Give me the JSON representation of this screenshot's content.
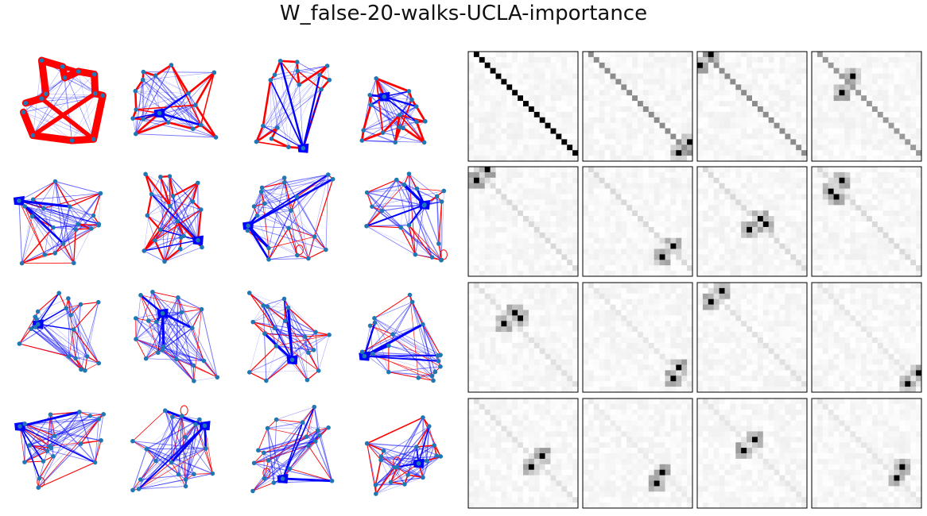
{
  "title": "W_false-20-walks-UCLA-importance",
  "colors": {
    "node": "#1f77b4",
    "positive_edge": "#ff0000",
    "negative_edge": "#0000ff",
    "matrix_border": "#000000"
  },
  "graphs": [
    {
      "seed": 101,
      "nodes": 14,
      "redWidth": 9,
      "blueWidth": 0.6,
      "density": 0.55,
      "cluster": 0,
      "loops": 0
    },
    {
      "seed": 202,
      "nodes": 17,
      "redWidth": 2.6,
      "blueWidth": 0.8,
      "density": 0.35,
      "cluster": 1,
      "loops": 0
    },
    {
      "seed": 303,
      "nodes": 16,
      "redWidth": 2.6,
      "blueWidth": 0.5,
      "density": 0.4,
      "cluster": 1,
      "loops": 0
    },
    {
      "seed": 404,
      "nodes": 17,
      "redWidth": 2.8,
      "blueWidth": 1.2,
      "density": 0.35,
      "cluster": 1,
      "loops": 0
    },
    {
      "seed": 505,
      "nodes": 20,
      "redWidth": 1.4,
      "blueWidth": 1.0,
      "density": 0.3,
      "cluster": 1,
      "loops": 0
    },
    {
      "seed": 606,
      "nodes": 20,
      "redWidth": 2.2,
      "blueWidth": 0.9,
      "density": 0.3,
      "cluster": 1,
      "loops": 0
    },
    {
      "seed": 707,
      "nodes": 20,
      "redWidth": 1.2,
      "blueWidth": 1.0,
      "density": 0.3,
      "cluster": 1,
      "loops": 1
    },
    {
      "seed": 808,
      "nodes": 20,
      "redWidth": 1.2,
      "blueWidth": 1.2,
      "density": 0.3,
      "cluster": 1,
      "loops": 1
    },
    {
      "seed": 909,
      "nodes": 20,
      "redWidth": 1.1,
      "blueWidth": 1.0,
      "density": 0.3,
      "cluster": 1,
      "loops": 0
    },
    {
      "seed": 111,
      "nodes": 20,
      "redWidth": 0.9,
      "blueWidth": 1.2,
      "density": 0.35,
      "cluster": 1,
      "loops": 0
    },
    {
      "seed": 222,
      "nodes": 20,
      "redWidth": 1.2,
      "blueWidth": 1.2,
      "density": 0.3,
      "cluster": 1,
      "loops": 0
    },
    {
      "seed": 333,
      "nodes": 20,
      "redWidth": 1.0,
      "blueWidth": 1.0,
      "density": 0.3,
      "cluster": 1,
      "loops": 0
    },
    {
      "seed": 444,
      "nodes": 20,
      "redWidth": 1.1,
      "blueWidth": 1.2,
      "density": 0.3,
      "cluster": 1,
      "loops": 1
    },
    {
      "seed": 555,
      "nodes": 20,
      "redWidth": 0.8,
      "blueWidth": 1.2,
      "density": 0.35,
      "cluster": 1,
      "loops": 1
    },
    {
      "seed": 666,
      "nodes": 20,
      "redWidth": 0.9,
      "blueWidth": 1.2,
      "density": 0.35,
      "cluster": 1,
      "loops": 1
    },
    {
      "seed": 777,
      "nodes": 20,
      "redWidth": 1.6,
      "blueWidth": 1.2,
      "density": 0.3,
      "cluster": 1,
      "loops": 1
    }
  ],
  "matrices": [
    {
      "seed": 11,
      "size": 20,
      "diag": 1.0,
      "spots": [],
      "shift": 0
    },
    {
      "seed": 12,
      "size": 20,
      "diag": 0.45,
      "spots": [
        [
          16,
          19
        ],
        [
          18,
          17
        ]
      ],
      "shift": 0
    },
    {
      "seed": 13,
      "size": 20,
      "diag": 0.45,
      "spots": [
        [
          0,
          2
        ],
        [
          2,
          0
        ]
      ],
      "shift": 0
    },
    {
      "seed": 14,
      "size": 20,
      "diag": 0.4,
      "spots": [
        [
          4,
          7
        ],
        [
          7,
          5
        ]
      ],
      "shift": 0
    },
    {
      "seed": 15,
      "size": 20,
      "diag": 0.15,
      "spots": [
        [
          0,
          3
        ],
        [
          2,
          1
        ]
      ],
      "shift": 0
    },
    {
      "seed": 16,
      "size": 20,
      "diag": 0.15,
      "spots": [
        [
          14,
          16
        ],
        [
          16,
          14
        ]
      ],
      "shift": 0
    },
    {
      "seed": 17,
      "size": 20,
      "diag": 0.15,
      "spots": [
        [
          9,
          11
        ],
        [
          11,
          9
        ],
        [
          10,
          12
        ]
      ],
      "shift": 0
    },
    {
      "seed": 18,
      "size": 20,
      "diag": 0.15,
      "spots": [
        [
          2,
          5
        ],
        [
          4,
          3
        ],
        [
          5,
          4
        ]
      ],
      "shift": 0
    },
    {
      "seed": 19,
      "size": 20,
      "diag": 0.12,
      "spots": [
        [
          5,
          8
        ],
        [
          7,
          6
        ],
        [
          6,
          9
        ]
      ],
      "shift": 0
    },
    {
      "seed": 20,
      "size": 20,
      "diag": 0.1,
      "spots": [
        [
          15,
          17
        ],
        [
          17,
          16
        ]
      ],
      "shift": 0
    },
    {
      "seed": 21,
      "size": 20,
      "diag": 0.12,
      "spots": [
        [
          1,
          4
        ],
        [
          3,
          2
        ]
      ],
      "shift": 0
    },
    {
      "seed": 22,
      "size": 20,
      "diag": 0.1,
      "spots": [
        [
          16,
          19
        ],
        [
          18,
          17
        ]
      ],
      "shift": 0
    },
    {
      "seed": 23,
      "size": 20,
      "diag": 0.12,
      "spots": [
        [
          10,
          13
        ],
        [
          12,
          11
        ]
      ],
      "shift": 0
    },
    {
      "seed": 24,
      "size": 20,
      "diag": 0.08,
      "spots": [
        [
          13,
          14
        ],
        [
          15,
          13
        ]
      ],
      "shift": 0
    },
    {
      "seed": 25,
      "size": 20,
      "diag": 0.1,
      "spots": [
        [
          7,
          10
        ],
        [
          9,
          8
        ]
      ],
      "shift": 0
    },
    {
      "seed": 26,
      "size": 20,
      "diag": 0.1,
      "spots": [
        [
          12,
          16
        ],
        [
          14,
          15
        ]
      ],
      "shift": 0
    }
  ]
}
